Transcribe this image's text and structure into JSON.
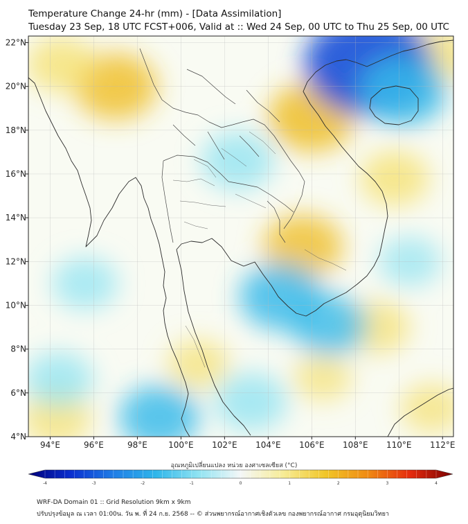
{
  "title": {
    "line1": "Temperature Change 24-hr (mm) - [Data Assimilation]",
    "line2": "Tuesday 23 Sep, 18 UTC FCST+006, Valid at :: Wed 24 Sep, 00 UTC to Thu 25 Sep, 00 UTC"
  },
  "map": {
    "lon_range": [
      93,
      112.5
    ],
    "lat_range": [
      4,
      22.3
    ],
    "lon_ticks": [
      {
        "value": 94,
        "label": "94°E"
      },
      {
        "value": 96,
        "label": "96°E"
      },
      {
        "value": 98,
        "label": "98°E"
      },
      {
        "value": 100,
        "label": "100°E"
      },
      {
        "value": 102,
        "label": "102°E"
      },
      {
        "value": 104,
        "label": "104°E"
      },
      {
        "value": 106,
        "label": "106°E"
      },
      {
        "value": 108,
        "label": "108°E"
      },
      {
        "value": 110,
        "label": "110°E"
      },
      {
        "value": 112,
        "label": "112°E"
      }
    ],
    "lat_ticks": [
      {
        "value": 4,
        "label": "4°N"
      },
      {
        "value": 6,
        "label": "6°N"
      },
      {
        "value": 8,
        "label": "8°N"
      },
      {
        "value": 10,
        "label": "10°N"
      },
      {
        "value": 12,
        "label": "12°N"
      },
      {
        "value": 14,
        "label": "14°N"
      },
      {
        "value": 16,
        "label": "16°N"
      },
      {
        "value": 18,
        "label": "18°N"
      },
      {
        "value": 20,
        "label": "20°N"
      },
      {
        "value": 22,
        "label": "22°N"
      }
    ],
    "gridlines": true,
    "colors": {
      "warm": "#f5e06e",
      "warm_strong": "#efbf2a",
      "neutral": "#fbfbf4",
      "cool": "#8fe3f2",
      "cool_mid": "#35b9ea",
      "cool_strong": "#1450d8",
      "coast": "#2a2a2a",
      "border": "#444444"
    },
    "anomaly_fields": [
      {
        "type": "warm",
        "lon": 97.0,
        "lat": 20.0,
        "value": 1.3
      },
      {
        "type": "warm",
        "lon": 94.5,
        "lat": 21.0,
        "value": 0.9
      },
      {
        "type": "warm",
        "lon": 106.0,
        "lat": 18.6,
        "value": 1.4
      },
      {
        "type": "warm",
        "lon": 105.6,
        "lat": 12.7,
        "value": 1.2
      },
      {
        "type": "warm",
        "lon": 111.7,
        "lat": 21.4,
        "value": 1.0
      },
      {
        "type": "warm",
        "lon": 109.8,
        "lat": 15.8,
        "value": 0.9
      },
      {
        "type": "warm",
        "lon": 109.0,
        "lat": 9.0,
        "value": 0.8
      },
      {
        "type": "warm",
        "lon": 94.3,
        "lat": 4.9,
        "value": 0.9
      },
      {
        "type": "warm",
        "lon": 100.8,
        "lat": 7.3,
        "value": 0.7
      },
      {
        "type": "warm",
        "lon": 106.5,
        "lat": 6.7,
        "value": 0.6
      },
      {
        "type": "warm",
        "lon": 111.5,
        "lat": 5.3,
        "value": 0.7
      },
      {
        "type": "cool",
        "lon": 108.6,
        "lat": 21.0,
        "value": -2.6
      },
      {
        "type": "cool",
        "lon": 110.2,
        "lat": 19.8,
        "value": -1.4
      },
      {
        "type": "cool",
        "lon": 102.6,
        "lat": 16.6,
        "value": -1.0
      },
      {
        "type": "cool",
        "lon": 104.6,
        "lat": 10.4,
        "value": -1.3
      },
      {
        "type": "cool",
        "lon": 106.8,
        "lat": 9.1,
        "value": -1.1
      },
      {
        "type": "cool",
        "lon": 99.0,
        "lat": 4.9,
        "value": -1.2
      },
      {
        "type": "cool",
        "lon": 94.4,
        "lat": 6.6,
        "value": -0.9
      },
      {
        "type": "cool",
        "lon": 103.2,
        "lat": 5.6,
        "value": -1.0
      },
      {
        "type": "cool",
        "lon": 95.6,
        "lat": 11.0,
        "value": -0.8
      },
      {
        "type": "cool",
        "lon": 110.5,
        "lat": 12.0,
        "value": -0.7
      }
    ]
  },
  "colorbar": {
    "title": "อุณหภูมิเปลี่ยนแปลง หน่วย องศาเซลเซียส (°C)",
    "range": [
      -4,
      4
    ],
    "ticks": [
      {
        "value": -4,
        "label": "-4"
      },
      {
        "value": -3,
        "label": "-3"
      },
      {
        "value": -2,
        "label": "-2"
      },
      {
        "value": -1,
        "label": "-1"
      },
      {
        "value": 0,
        "label": "0"
      },
      {
        "value": 1,
        "label": "1"
      },
      {
        "value": 2,
        "label": "2"
      },
      {
        "value": 3,
        "label": "3"
      },
      {
        "value": 4,
        "label": "4"
      }
    ],
    "stops": [
      {
        "value": -4,
        "color": "#00007a"
      },
      {
        "value": -3.2,
        "color": "#0a2fcf"
      },
      {
        "value": -2.4,
        "color": "#1f7de6"
      },
      {
        "value": -1.6,
        "color": "#2fb6ea"
      },
      {
        "value": -0.8,
        "color": "#8fe3f2"
      },
      {
        "value": 0,
        "color": "#f4f7f7"
      },
      {
        "value": 0.8,
        "color": "#f7ec97"
      },
      {
        "value": 1.6,
        "color": "#f1c628"
      },
      {
        "value": 2.4,
        "color": "#f08a12"
      },
      {
        "value": 3.2,
        "color": "#e52b0e"
      },
      {
        "value": 4,
        "color": "#7a0000"
      }
    ]
  },
  "footer": {
    "line1": "WRF-DA Domain 01 :: Grid Resolution 9km x 9km",
    "line2": "ปรับปรุงข้อมูล ณ เวลา 01:00น. วัน พ. ที่ 24 ก.ย. 2568 -- © ส่วนพยากรณ์อากาศเชิงตัวเลข กองพยากรณ์อากาศ กรมอุตุนิยมวิทยา"
  }
}
